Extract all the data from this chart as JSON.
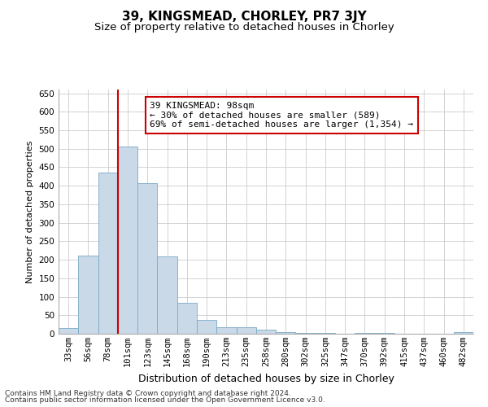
{
  "title": "39, KINGSMEAD, CHORLEY, PR7 3JY",
  "subtitle": "Size of property relative to detached houses in Chorley",
  "xlabel": "Distribution of detached houses by size in Chorley",
  "ylabel": "Number of detached properties",
  "categories": [
    "33sqm",
    "56sqm",
    "78sqm",
    "101sqm",
    "123sqm",
    "145sqm",
    "168sqm",
    "190sqm",
    "213sqm",
    "235sqm",
    "258sqm",
    "280sqm",
    "302sqm",
    "325sqm",
    "347sqm",
    "370sqm",
    "392sqm",
    "415sqm",
    "437sqm",
    "460sqm",
    "482sqm"
  ],
  "values": [
    15,
    212,
    435,
    505,
    408,
    208,
    83,
    38,
    18,
    18,
    10,
    5,
    3,
    3,
    0,
    3,
    3,
    0,
    0,
    0,
    5
  ],
  "bar_color": "#c9d9e8",
  "bar_edgecolor": "#7aaac8",
  "vline_index": 3,
  "vline_color": "#cc0000",
  "annotation_text": "39 KINGSMEAD: 98sqm\n← 30% of detached houses are smaller (589)\n69% of semi-detached houses are larger (1,354) →",
  "annotation_box_color": "#ffffff",
  "annotation_box_edgecolor": "#cc0000",
  "ylim": [
    0,
    660
  ],
  "yticks": [
    0,
    50,
    100,
    150,
    200,
    250,
    300,
    350,
    400,
    450,
    500,
    550,
    600,
    650
  ],
  "grid_color": "#cccccc",
  "background_color": "#ffffff",
  "footer_line1": "Contains HM Land Registry data © Crown copyright and database right 2024.",
  "footer_line2": "Contains public sector information licensed under the Open Government Licence v3.0.",
  "title_fontsize": 11,
  "subtitle_fontsize": 9.5,
  "xlabel_fontsize": 9,
  "ylabel_fontsize": 8,
  "tick_fontsize": 7.5,
  "annotation_fontsize": 8,
  "footer_fontsize": 6.5
}
